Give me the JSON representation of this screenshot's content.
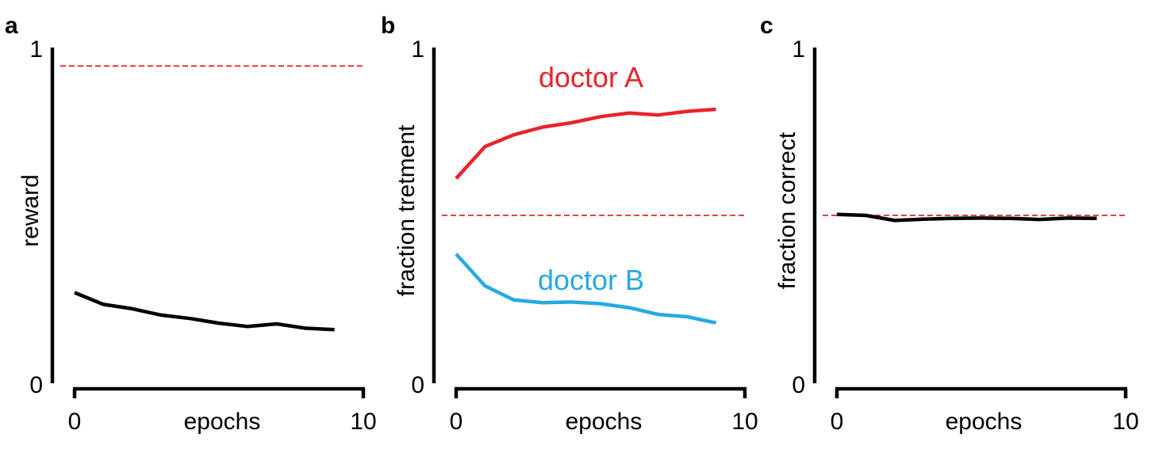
{
  "chart_data": [
    {
      "type": "line",
      "panel_label": "a",
      "xlabel": "epochs",
      "ylabel": "reward",
      "xlim": [
        0,
        10
      ],
      "ylim": [
        0,
        1
      ],
      "x_tick_labels": [
        "0",
        "10"
      ],
      "y_tick_labels": [
        "0",
        "1"
      ],
      "reference_line": {
        "y": 0.945,
        "color": "#e8242b",
        "style": "dashed"
      },
      "series": [
        {
          "color": "#000000",
          "x": [
            0,
            1,
            2,
            3,
            4,
            5,
            6,
            7,
            8,
            9
          ],
          "y": [
            0.27,
            0.235,
            0.222,
            0.203,
            0.193,
            0.179,
            0.169,
            0.177,
            0.164,
            0.16
          ]
        }
      ]
    },
    {
      "type": "line",
      "panel_label": "b",
      "xlabel": "epochs",
      "ylabel": "fraction tretment",
      "xlim": [
        0,
        10
      ],
      "ylim": [
        0,
        1
      ],
      "x_tick_labels": [
        "0",
        "10"
      ],
      "y_tick_labels": [
        "0",
        "1"
      ],
      "reference_line": {
        "y": 0.5,
        "color": "#e8242b",
        "style": "dashed"
      },
      "series": [
        {
          "name": "doctor A",
          "color": "#e8242b",
          "x": [
            0,
            1,
            2,
            3,
            4,
            5,
            6,
            7,
            8,
            9
          ],
          "y": [
            0.61,
            0.705,
            0.74,
            0.763,
            0.776,
            0.794,
            0.805,
            0.799,
            0.81,
            0.816
          ]
        },
        {
          "name": "doctor B",
          "color": "#27a9e1",
          "x": [
            0,
            1,
            2,
            3,
            4,
            5,
            6,
            7,
            8,
            9
          ],
          "y": [
            0.385,
            0.29,
            0.248,
            0.24,
            0.242,
            0.237,
            0.225,
            0.205,
            0.198,
            0.18
          ]
        }
      ]
    },
    {
      "type": "line",
      "panel_label": "c",
      "xlabel": "epochs",
      "ylabel": "fraction correct",
      "xlim": [
        0,
        10
      ],
      "ylim": [
        0,
        1
      ],
      "x_tick_labels": [
        "0",
        "10"
      ],
      "y_tick_labels": [
        "0",
        "1"
      ],
      "reference_line": {
        "y": 0.5,
        "color": "#e8242b",
        "style": "dashed"
      },
      "series": [
        {
          "color": "#000000",
          "x": [
            0,
            1,
            2,
            3,
            4,
            5,
            6,
            7,
            8,
            9
          ],
          "y": [
            0.503,
            0.5,
            0.485,
            0.489,
            0.491,
            0.492,
            0.491,
            0.488,
            0.492,
            0.491
          ]
        }
      ]
    }
  ]
}
